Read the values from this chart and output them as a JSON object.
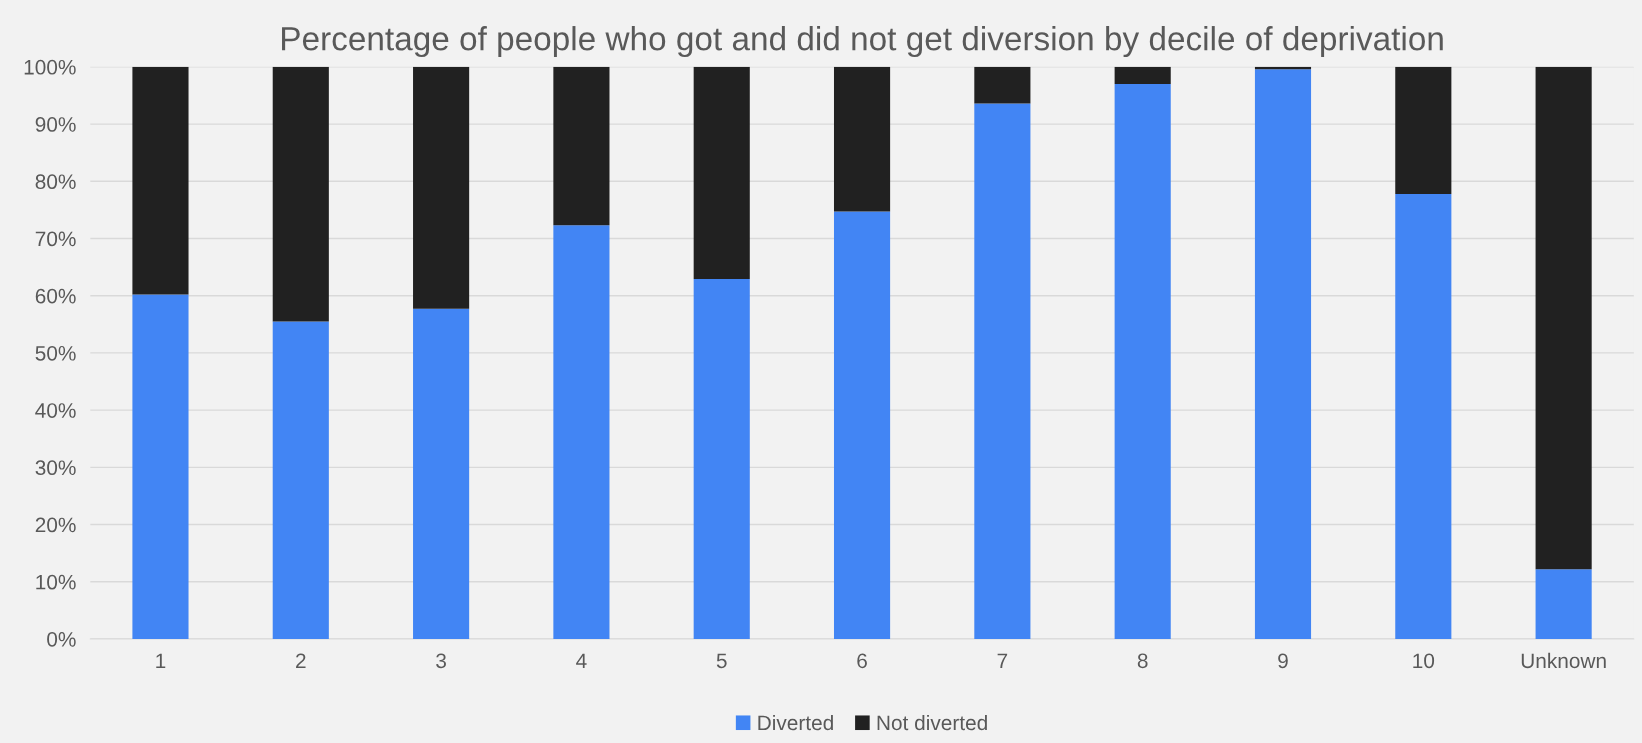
{
  "chart_data": {
    "type": "bar",
    "title": "Percentage of people who got and did not get diversion by decile of deprivation",
    "categories": [
      "1",
      "2",
      "3",
      "4",
      "5",
      "6",
      "7",
      "8",
      "9",
      "10",
      "Unknown"
    ],
    "stacked": true,
    "series": [
      {
        "name": "Diverted",
        "color": "#4285f4",
        "values": [
          60.2,
          55.5,
          57.7,
          72.3,
          62.9,
          74.7,
          93.6,
          97.0,
          99.6,
          77.8,
          12.2
        ]
      },
      {
        "name": "Not diverted",
        "color": "#212121",
        "values": [
          39.8,
          44.5,
          42.3,
          27.7,
          37.1,
          25.3,
          6.4,
          3.0,
          0.4,
          22.2,
          87.8
        ]
      }
    ],
    "ylim": [
      0,
      100
    ],
    "yticks": [
      {
        "value": 0,
        "label": "0%"
      },
      {
        "value": 10,
        "label": "10%"
      },
      {
        "value": 20,
        "label": "20%"
      },
      {
        "value": 30,
        "label": "30%"
      },
      {
        "value": 40,
        "label": "40%"
      },
      {
        "value": 50,
        "label": "50%"
      },
      {
        "value": 60,
        "label": "60%"
      },
      {
        "value": 70,
        "label": "70%"
      },
      {
        "value": 80,
        "label": "80%"
      },
      {
        "value": 90,
        "label": "90%"
      },
      {
        "value": 100,
        "label": "100%"
      }
    ],
    "grid": "y",
    "legend": "bottom"
  }
}
